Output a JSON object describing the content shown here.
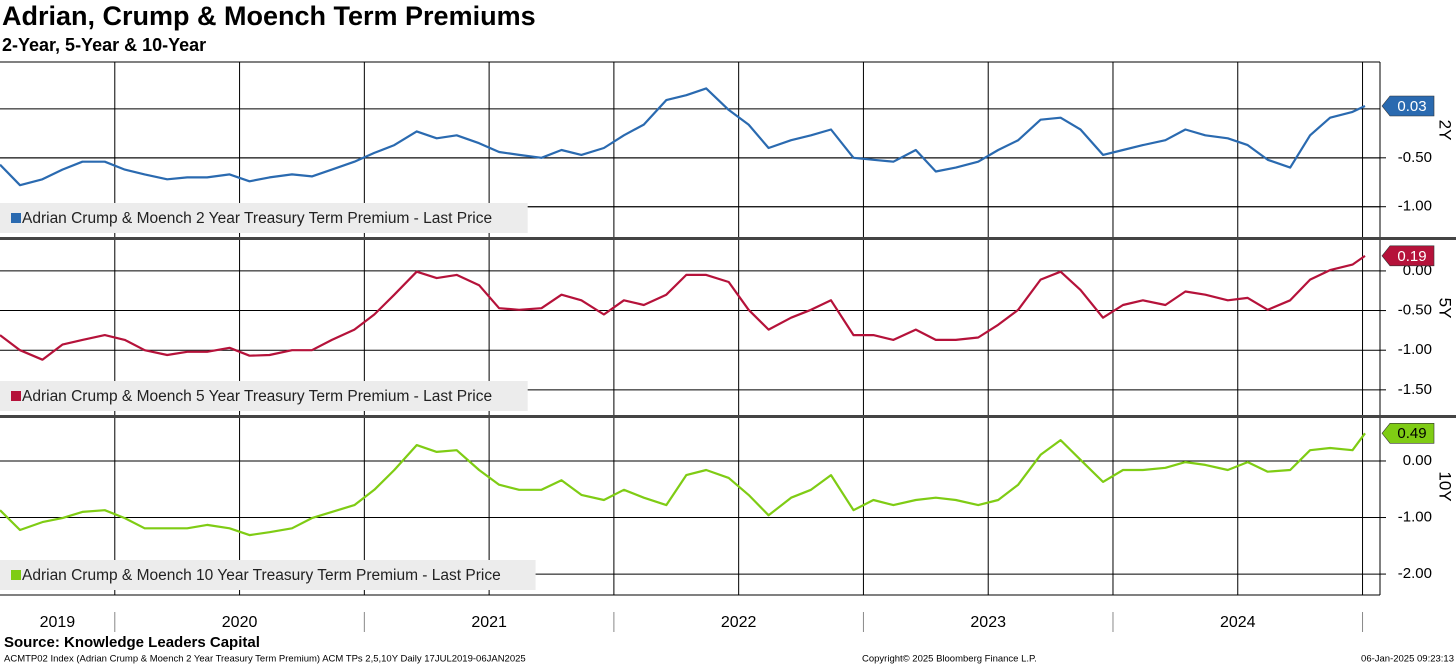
{
  "title": "Adrian, Crump & Moench Term Premiums",
  "subtitle": "2-Year, 5-Year & 10-Year",
  "source": "Source: Knowledge Leaders Capital",
  "footer_left": "ACMTP02 Index (Adrian Crump & Moench 2 Year Treasury Term Premium) ACM TPs 2,5,10Y  Daily 17JUL2019-06JAN2025",
  "footer_mid": "Copyright© 2025 Bloomberg Finance L.P.",
  "footer_right": "06-Jan-2025 09:23:13",
  "x_axis": {
    "xlim": [
      2019.54,
      2025.07
    ],
    "xticks": [
      {
        "value": 2019.77,
        "label": "2019"
      },
      {
        "value": 2020.5,
        "label": "2020"
      },
      {
        "value": 2021.5,
        "label": "2021"
      },
      {
        "value": 2022.5,
        "label": "2022"
      },
      {
        "value": 2023.5,
        "label": "2023"
      },
      {
        "value": 2024.5,
        "label": "2024"
      }
    ],
    "xgrid": [
      2020,
      2020.5,
      2021,
      2021.5,
      2022,
      2022.5,
      2023,
      2023.5,
      2024,
      2024.5,
      2025
    ]
  },
  "chart_data": [
    {
      "type": "line",
      "ylabel": "2Y",
      "ylim": [
        -1.32,
        0.48
      ],
      "yticks": [
        {
          "value": -0.5,
          "label": "-0.50"
        },
        {
          "value": -1,
          "label": "-1.00"
        }
      ],
      "ygrid": [
        0,
        -0.5,
        -1
      ],
      "x": [
        2019.54,
        2019.62,
        2019.71,
        2019.79,
        2019.87,
        2019.96,
        2020.04,
        2020.12,
        2020.21,
        2020.29,
        2020.37,
        2020.46,
        2020.54,
        2020.62,
        2020.71,
        2020.79,
        2020.87,
        2020.96,
        2021.04,
        2021.12,
        2021.21,
        2021.29,
        2021.37,
        2021.46,
        2021.54,
        2021.62,
        2021.71,
        2021.79,
        2021.87,
        2021.96,
        2022.04,
        2022.12,
        2022.21,
        2022.29,
        2022.37,
        2022.46,
        2022.54,
        2022.62,
        2022.71,
        2022.79,
        2022.87,
        2022.96,
        2023.04,
        2023.12,
        2023.21,
        2023.29,
        2023.37,
        2023.46,
        2023.54,
        2023.62,
        2023.71,
        2023.79,
        2023.87,
        2023.96,
        2024.04,
        2024.12,
        2024.21,
        2024.29,
        2024.37,
        2024.46,
        2024.54,
        2024.62,
        2024.71,
        2024.79,
        2024.87,
        2024.96,
        2025.01
      ],
      "series": [
        {
          "name": "Adrian Crump & Moench 2 Year Treasury Term Premium - Last Price",
          "color": "#2a6ab0",
          "label_text_color": "#ffffff",
          "values": [
            -0.57,
            -0.78,
            -0.72,
            -0.62,
            -0.54,
            -0.54,
            -0.62,
            -0.67,
            -0.72,
            -0.7,
            -0.7,
            -0.67,
            -0.74,
            -0.7,
            -0.67,
            -0.69,
            -0.62,
            -0.54,
            -0.45,
            -0.37,
            -0.23,
            -0.3,
            -0.27,
            -0.35,
            -0.44,
            -0.47,
            -0.5,
            -0.42,
            -0.47,
            -0.4,
            -0.27,
            -0.16,
            0.09,
            0.14,
            0.21,
            -0.01,
            -0.16,
            -0.4,
            -0.32,
            -0.27,
            -0.21,
            -0.5,
            -0.52,
            -0.54,
            -0.42,
            -0.64,
            -0.6,
            -0.54,
            -0.42,
            -0.32,
            -0.11,
            -0.09,
            -0.21,
            -0.47,
            -0.42,
            -0.37,
            -0.32,
            -0.21,
            -0.27,
            -0.3,
            -0.37,
            -0.52,
            -0.6,
            -0.27,
            -0.09,
            -0.03,
            0.03
          ]
        }
      ]
    },
    {
      "type": "line",
      "ylabel": "5Y",
      "ylim": [
        -1.83,
        0.39
      ],
      "yticks": [
        {
          "value": 0,
          "label": "0.00"
        },
        {
          "value": -0.5,
          "label": "-0.50"
        },
        {
          "value": -1,
          "label": "-1.00"
        },
        {
          "value": -1.5,
          "label": "-1.50"
        }
      ],
      "x": [
        2019.54,
        2019.62,
        2019.71,
        2019.79,
        2019.87,
        2019.96,
        2020.04,
        2020.12,
        2020.21,
        2020.29,
        2020.37,
        2020.46,
        2020.54,
        2020.62,
        2020.71,
        2020.79,
        2020.87,
        2020.96,
        2021.04,
        2021.12,
        2021.21,
        2021.29,
        2021.37,
        2021.46,
        2021.54,
        2021.62,
        2021.71,
        2021.79,
        2021.87,
        2021.96,
        2022.04,
        2022.12,
        2022.21,
        2022.29,
        2022.37,
        2022.46,
        2022.54,
        2022.62,
        2022.71,
        2022.79,
        2022.87,
        2022.96,
        2023.04,
        2023.12,
        2023.21,
        2023.29,
        2023.37,
        2023.46,
        2023.54,
        2023.62,
        2023.71,
        2023.79,
        2023.87,
        2023.96,
        2024.04,
        2024.12,
        2024.21,
        2024.29,
        2024.37,
        2024.46,
        2024.54,
        2024.62,
        2024.71,
        2024.79,
        2024.87,
        2024.96,
        2025.01
      ],
      "series": [
        {
          "name": "Adrian Crump & Moench 5 Year Treasury Term Premium - Last Price",
          "color": "#b5123a",
          "label_text_color": "#ffffff",
          "values": [
            -0.81,
            -1.0,
            -1.12,
            -0.93,
            -0.87,
            -0.81,
            -0.87,
            -1.0,
            -1.06,
            -1.02,
            -1.02,
            -0.97,
            -1.07,
            -1.06,
            -1.0,
            -1.0,
            -0.87,
            -0.74,
            -0.55,
            -0.3,
            -0.01,
            -0.09,
            -0.05,
            -0.18,
            -0.47,
            -0.49,
            -0.47,
            -0.3,
            -0.37,
            -0.55,
            -0.37,
            -0.43,
            -0.3,
            -0.05,
            -0.05,
            -0.14,
            -0.49,
            -0.74,
            -0.59,
            -0.49,
            -0.37,
            -0.81,
            -0.81,
            -0.87,
            -0.74,
            -0.87,
            -0.87,
            -0.84,
            -0.68,
            -0.49,
            -0.11,
            -0.01,
            -0.24,
            -0.59,
            -0.43,
            -0.37,
            -0.43,
            -0.26,
            -0.3,
            -0.37,
            -0.34,
            -0.49,
            -0.37,
            -0.11,
            0.01,
            0.08,
            0.19
          ]
        }
      ]
    },
    {
      "type": "line",
      "ylabel": "10Y",
      "ylim": [
        -2.37,
        0.76
      ],
      "yticks": [
        {
          "value": 0,
          "label": "0.00"
        },
        {
          "value": -1,
          "label": "-1.00"
        },
        {
          "value": -2,
          "label": "-2.00"
        }
      ],
      "x": [
        2019.54,
        2019.62,
        2019.71,
        2019.79,
        2019.87,
        2019.96,
        2020.04,
        2020.12,
        2020.21,
        2020.29,
        2020.37,
        2020.46,
        2020.54,
        2020.62,
        2020.71,
        2020.79,
        2020.87,
        2020.96,
        2021.04,
        2021.12,
        2021.21,
        2021.29,
        2021.37,
        2021.46,
        2021.54,
        2021.62,
        2021.71,
        2021.79,
        2021.87,
        2021.96,
        2022.04,
        2022.12,
        2022.21,
        2022.29,
        2022.37,
        2022.46,
        2022.54,
        2022.62,
        2022.71,
        2022.79,
        2022.87,
        2022.96,
        2023.04,
        2023.12,
        2023.21,
        2023.29,
        2023.37,
        2023.46,
        2023.54,
        2023.62,
        2023.71,
        2023.79,
        2023.87,
        2023.96,
        2024.04,
        2024.12,
        2024.21,
        2024.29,
        2024.37,
        2024.46,
        2024.54,
        2024.62,
        2024.71,
        2024.79,
        2024.87,
        2024.96,
        2025.01
      ],
      "series": [
        {
          "name": "Adrian Crump & Moench 10 Year Treasury Term Premium - Last Price",
          "color": "#7fcc14",
          "label_text_color": "#000000",
          "values": [
            -0.87,
            -1.22,
            -1.08,
            -1.01,
            -0.9,
            -0.87,
            -1.01,
            -1.19,
            -1.19,
            -1.19,
            -1.13,
            -1.19,
            -1.31,
            -1.26,
            -1.19,
            -1.01,
            -0.9,
            -0.78,
            -0.51,
            -0.16,
            0.28,
            0.16,
            0.19,
            -0.16,
            -0.42,
            -0.51,
            -0.51,
            -0.34,
            -0.6,
            -0.69,
            -0.51,
            -0.65,
            -0.78,
            -0.25,
            -0.16,
            -0.3,
            -0.6,
            -0.96,
            -0.65,
            -0.51,
            -0.25,
            -0.87,
            -0.69,
            -0.78,
            -0.69,
            -0.65,
            -0.69,
            -0.78,
            -0.69,
            -0.42,
            0.11,
            0.37,
            0.02,
            -0.37,
            -0.16,
            -0.16,
            -0.12,
            -0.02,
            -0.07,
            -0.16,
            -0.02,
            -0.19,
            -0.16,
            0.19,
            0.23,
            0.19,
            0.49
          ]
        }
      ]
    }
  ]
}
